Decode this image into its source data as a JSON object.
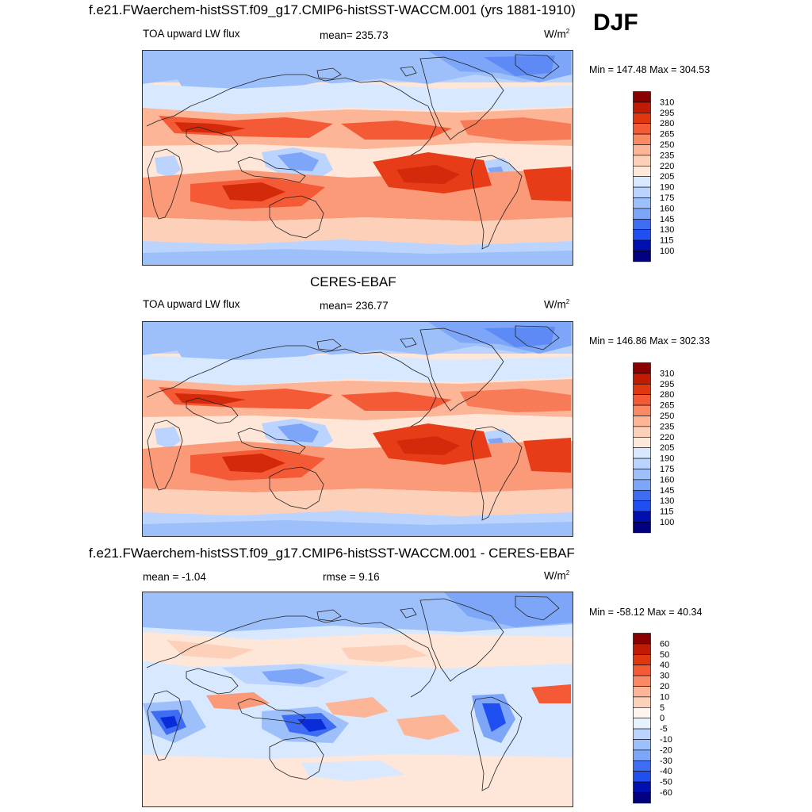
{
  "season": "DJF",
  "colors": {
    "warm": [
      "#fee6d8",
      "#fdd0b9",
      "#fcb597",
      "#fb9a79",
      "#f87b58",
      "#f35a35",
      "#e63d18",
      "#d42a0c",
      "#b51505",
      "#8a0000"
    ],
    "cool": [
      "#d8e8ff",
      "#bad4ff",
      "#9dc0fb",
      "#7ea6f8",
      "#5e8af6",
      "#3e6cf3",
      "#1f4ff0",
      "#0a2cd8",
      "#0010b0",
      "#000080"
    ],
    "land_line": "#222222"
  },
  "chart_data": [
    {
      "type": "heatmap",
      "name": "model",
      "title": "f.e21.FWaerchem-histSST.f09_g17.CMIP6-histSST-WACCM.001 (yrs 1881-1910)",
      "left_label": "TOA upward LW flux",
      "center_label": "mean= 235.73",
      "units_label": "W/m",
      "units_sup": "2",
      "minmax_label": "Min = 147.48 Max = 304.53",
      "mean": 235.73,
      "min": 147.48,
      "max": 304.53,
      "colorbar_levels": [
        "310",
        "295",
        "280",
        "265",
        "250",
        "235",
        "220",
        "205",
        "190",
        "175",
        "160",
        "145",
        "130",
        "115",
        "100"
      ],
      "colorbar_colors": [
        "#8a0000",
        "#c01b05",
        "#e0370f",
        "#f35a35",
        "#fa8a66",
        "#fcb597",
        "#fdd0b9",
        "#fee8da",
        "#d8e8ff",
        "#bad4ff",
        "#9dc0fb",
        "#7ea6f8",
        "#3e6cf3",
        "#1f4ff0",
        "#0010b0",
        "#000080"
      ]
    },
    {
      "type": "heatmap",
      "name": "obs",
      "title": "CERES-EBAF",
      "left_label": "TOA upward LW flux",
      "center_label": "mean= 236.77",
      "units_label": "W/m",
      "units_sup": "2",
      "minmax_label": "Min = 146.86 Max = 302.33",
      "mean": 236.77,
      "min": 146.86,
      "max": 302.33,
      "colorbar_levels": [
        "310",
        "295",
        "280",
        "265",
        "250",
        "235",
        "220",
        "205",
        "190",
        "175",
        "160",
        "145",
        "130",
        "115",
        "100"
      ],
      "colorbar_colors": [
        "#8a0000",
        "#c01b05",
        "#e0370f",
        "#f35a35",
        "#fa8a66",
        "#fcb597",
        "#fdd0b9",
        "#fee8da",
        "#d8e8ff",
        "#bad4ff",
        "#9dc0fb",
        "#7ea6f8",
        "#3e6cf3",
        "#1f4ff0",
        "#0010b0",
        "#000080"
      ]
    },
    {
      "type": "heatmap",
      "name": "diff",
      "title": "f.e21.FWaerchem-histSST.f09_g17.CMIP6-histSST-WACCM.001 - CERES-EBAF",
      "left_label": "mean =  -1.04",
      "center_label": "rmse =   9.16",
      "units_label": "W/m",
      "units_sup": "2",
      "minmax_label": "Min = -58.12 Max =  40.34",
      "mean": -1.04,
      "rmse": 9.16,
      "min": -58.12,
      "max": 40.34,
      "colorbar_levels": [
        "60",
        "50",
        "40",
        "30",
        "20",
        "10",
        "5",
        "0",
        "-5",
        "-10",
        "-20",
        "-30",
        "-40",
        "-50",
        "-60"
      ],
      "colorbar_colors": [
        "#8a0000",
        "#c01b05",
        "#e0370f",
        "#f35a35",
        "#fa8a66",
        "#fcb597",
        "#fdd0b9",
        "#fff4ee",
        "#e8f2ff",
        "#bad4ff",
        "#9dc0fb",
        "#7ea6f8",
        "#3e6cf3",
        "#1f4ff0",
        "#0010b0",
        "#000080"
      ]
    }
  ]
}
